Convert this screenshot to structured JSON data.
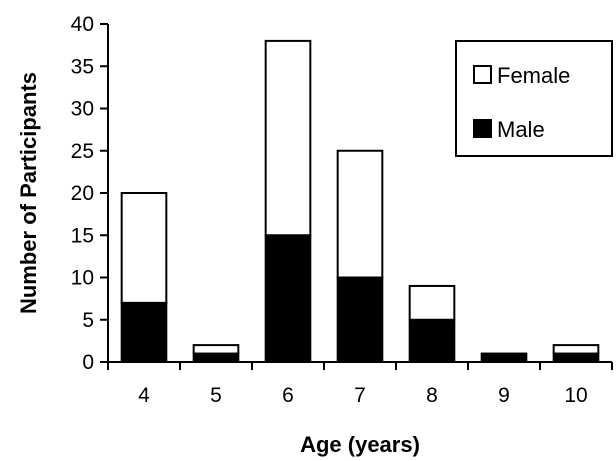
{
  "chart_data": {
    "type": "bar",
    "stacked": true,
    "categories": [
      "4",
      "5",
      "6",
      "7",
      "8",
      "9",
      "10"
    ],
    "series": [
      {
        "name": "Male",
        "values": [
          7,
          1,
          15,
          10,
          5,
          1,
          1
        ],
        "color": "#000000"
      },
      {
        "name": "Female",
        "values": [
          13,
          1,
          23,
          15,
          4,
          0,
          1
        ],
        "color": "#ffffff"
      }
    ],
    "totals": [
      20,
      2,
      38,
      25,
      9,
      1,
      2
    ],
    "xlabel": "Age (years)",
    "ylabel": "Number of Participants",
    "ylim": [
      0,
      40
    ],
    "yticks": [
      "0",
      "5",
      "10",
      "15",
      "20",
      "25",
      "30",
      "35",
      "40"
    ],
    "grid": false,
    "legend": {
      "placement": "top-right",
      "entries": [
        "Female",
        "Male"
      ]
    }
  }
}
